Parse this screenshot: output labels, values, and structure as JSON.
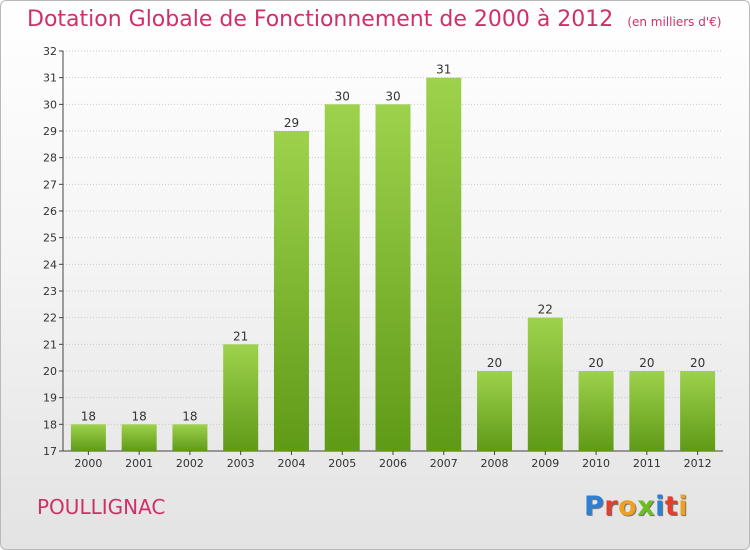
{
  "title": "Dotation Globale de Fonctionnement de 2000 à 2012",
  "unit": "(en milliers d'€)",
  "commune": "POULLIGNAC",
  "brand": "Proxiti",
  "colors": {
    "title": "#d0306a",
    "bar_top": "#9ed24c",
    "bar_bottom": "#5f9a17",
    "axis": "#444444",
    "grid": "#c8c8c8"
  },
  "chart_data": {
    "type": "bar",
    "title": "Dotation Globale de Fonctionnement de 2000 à 2012",
    "categories": [
      "2000",
      "2001",
      "2002",
      "2003",
      "2004",
      "2005",
      "2006",
      "2007",
      "2008",
      "2009",
      "2010",
      "2011",
      "2012"
    ],
    "values": [
      18,
      18,
      18,
      21,
      29,
      30,
      30,
      31,
      20,
      22,
      20,
      20,
      20
    ],
    "xlabel": "",
    "ylabel": "",
    "ylim": [
      17,
      32
    ],
    "yticks": [
      17,
      18,
      19,
      20,
      21,
      22,
      23,
      24,
      25,
      26,
      27,
      28,
      29,
      30,
      31,
      32
    ],
    "data_labels": true,
    "grid": true
  }
}
